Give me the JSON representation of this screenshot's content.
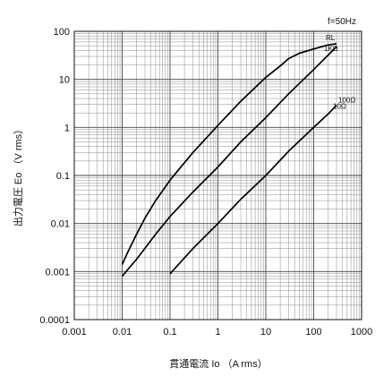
{
  "chart_data": {
    "type": "line",
    "title": "",
    "annotation": "f=50Hz",
    "xlabel": "貫通電流 Io （A rms）",
    "ylabel": "出力電圧 Eo （V rms）",
    "xscale": "log",
    "yscale": "log",
    "xlim": [
      0.001,
      1000
    ],
    "ylim": [
      0.0001,
      100
    ],
    "grid": true,
    "x_ticks": [
      "0.001",
      "0.01",
      "0.1",
      "1",
      "10",
      "100",
      "1000"
    ],
    "y_ticks": [
      "0.0001",
      "0.001",
      "0.01",
      "0.1",
      "1",
      "10",
      "100"
    ],
    "series": [
      {
        "name": "RL",
        "points": [
          [
            0.01,
            0.0014
          ],
          [
            0.013,
            0.0025
          ],
          [
            0.02,
            0.006
          ],
          [
            0.03,
            0.013
          ],
          [
            0.05,
            0.03
          ],
          [
            0.1,
            0.08
          ],
          [
            0.3,
            0.3
          ],
          [
            1,
            1.1
          ],
          [
            3,
            3.5
          ],
          [
            10,
            11
          ],
          [
            20,
            19
          ],
          [
            30,
            27
          ],
          [
            50,
            35
          ],
          [
            100,
            43
          ],
          [
            200,
            52
          ],
          [
            300,
            55
          ]
        ]
      },
      {
        "name": "1KΩ",
        "points": [
          [
            0.01,
            0.0008
          ],
          [
            0.02,
            0.0018
          ],
          [
            0.05,
            0.006
          ],
          [
            0.1,
            0.014
          ],
          [
            0.3,
            0.045
          ],
          [
            1,
            0.15
          ],
          [
            3,
            0.5
          ],
          [
            10,
            1.6
          ],
          [
            30,
            5
          ],
          [
            100,
            16
          ],
          [
            200,
            32
          ],
          [
            300,
            48
          ]
        ]
      },
      {
        "name": "100Ω",
        "points": [
          [
            0.1,
            0.0009
          ],
          [
            0.3,
            0.003
          ],
          [
            1,
            0.01
          ],
          [
            3,
            0.032
          ],
          [
            10,
            0.1
          ],
          [
            30,
            0.32
          ],
          [
            100,
            1
          ],
          [
            200,
            1.9
          ],
          [
            300,
            2.9
          ]
        ]
      },
      {
        "name": "10Ω",
        "points": []
      }
    ]
  }
}
